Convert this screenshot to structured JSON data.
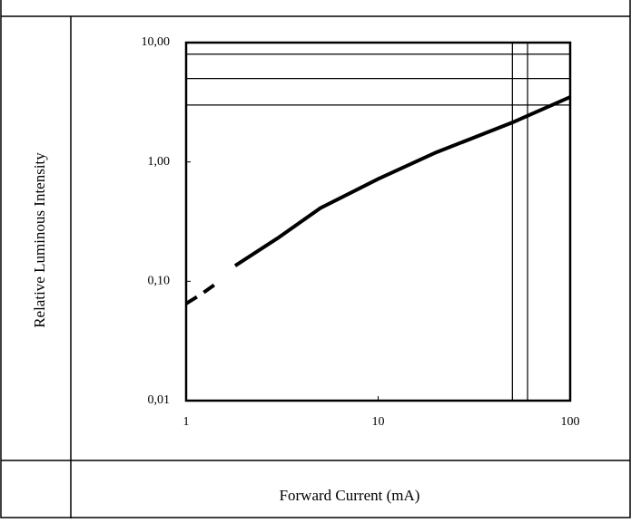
{
  "chart_data": {
    "type": "line",
    "ylabel": "Relative Luminous Intensity",
    "xlabel": "Forward Current (mA)",
    "x": [
      1,
      1.2,
      1.4,
      1.6,
      1.8,
      3,
      5,
      10,
      20,
      50,
      100
    ],
    "series": [
      {
        "name": "Relative Luminous Intensity",
        "color": "#000000",
        "values": [
          0.065,
          0.078,
          0.093,
          null,
          0.135,
          0.23,
          0.41,
          0.72,
          1.2,
          2.14,
          3.5
        ]
      }
    ],
    "xlim": [
      1,
      100
    ],
    "ylim": [
      0.01,
      10
    ],
    "xticks": [
      1,
      10,
      100
    ],
    "yticks": [
      {
        "value": 0.01,
        "label": "0,01"
      },
      {
        "value": 0.1,
        "label": "0,10"
      },
      {
        "value": 1,
        "label": "1,00"
      },
      {
        "value": 10,
        "label": "10,00"
      }
    ],
    "xscale": "log",
    "yscale": "log",
    "hlines": [
      3,
      5,
      8
    ],
    "vlines": [
      50,
      60
    ]
  }
}
